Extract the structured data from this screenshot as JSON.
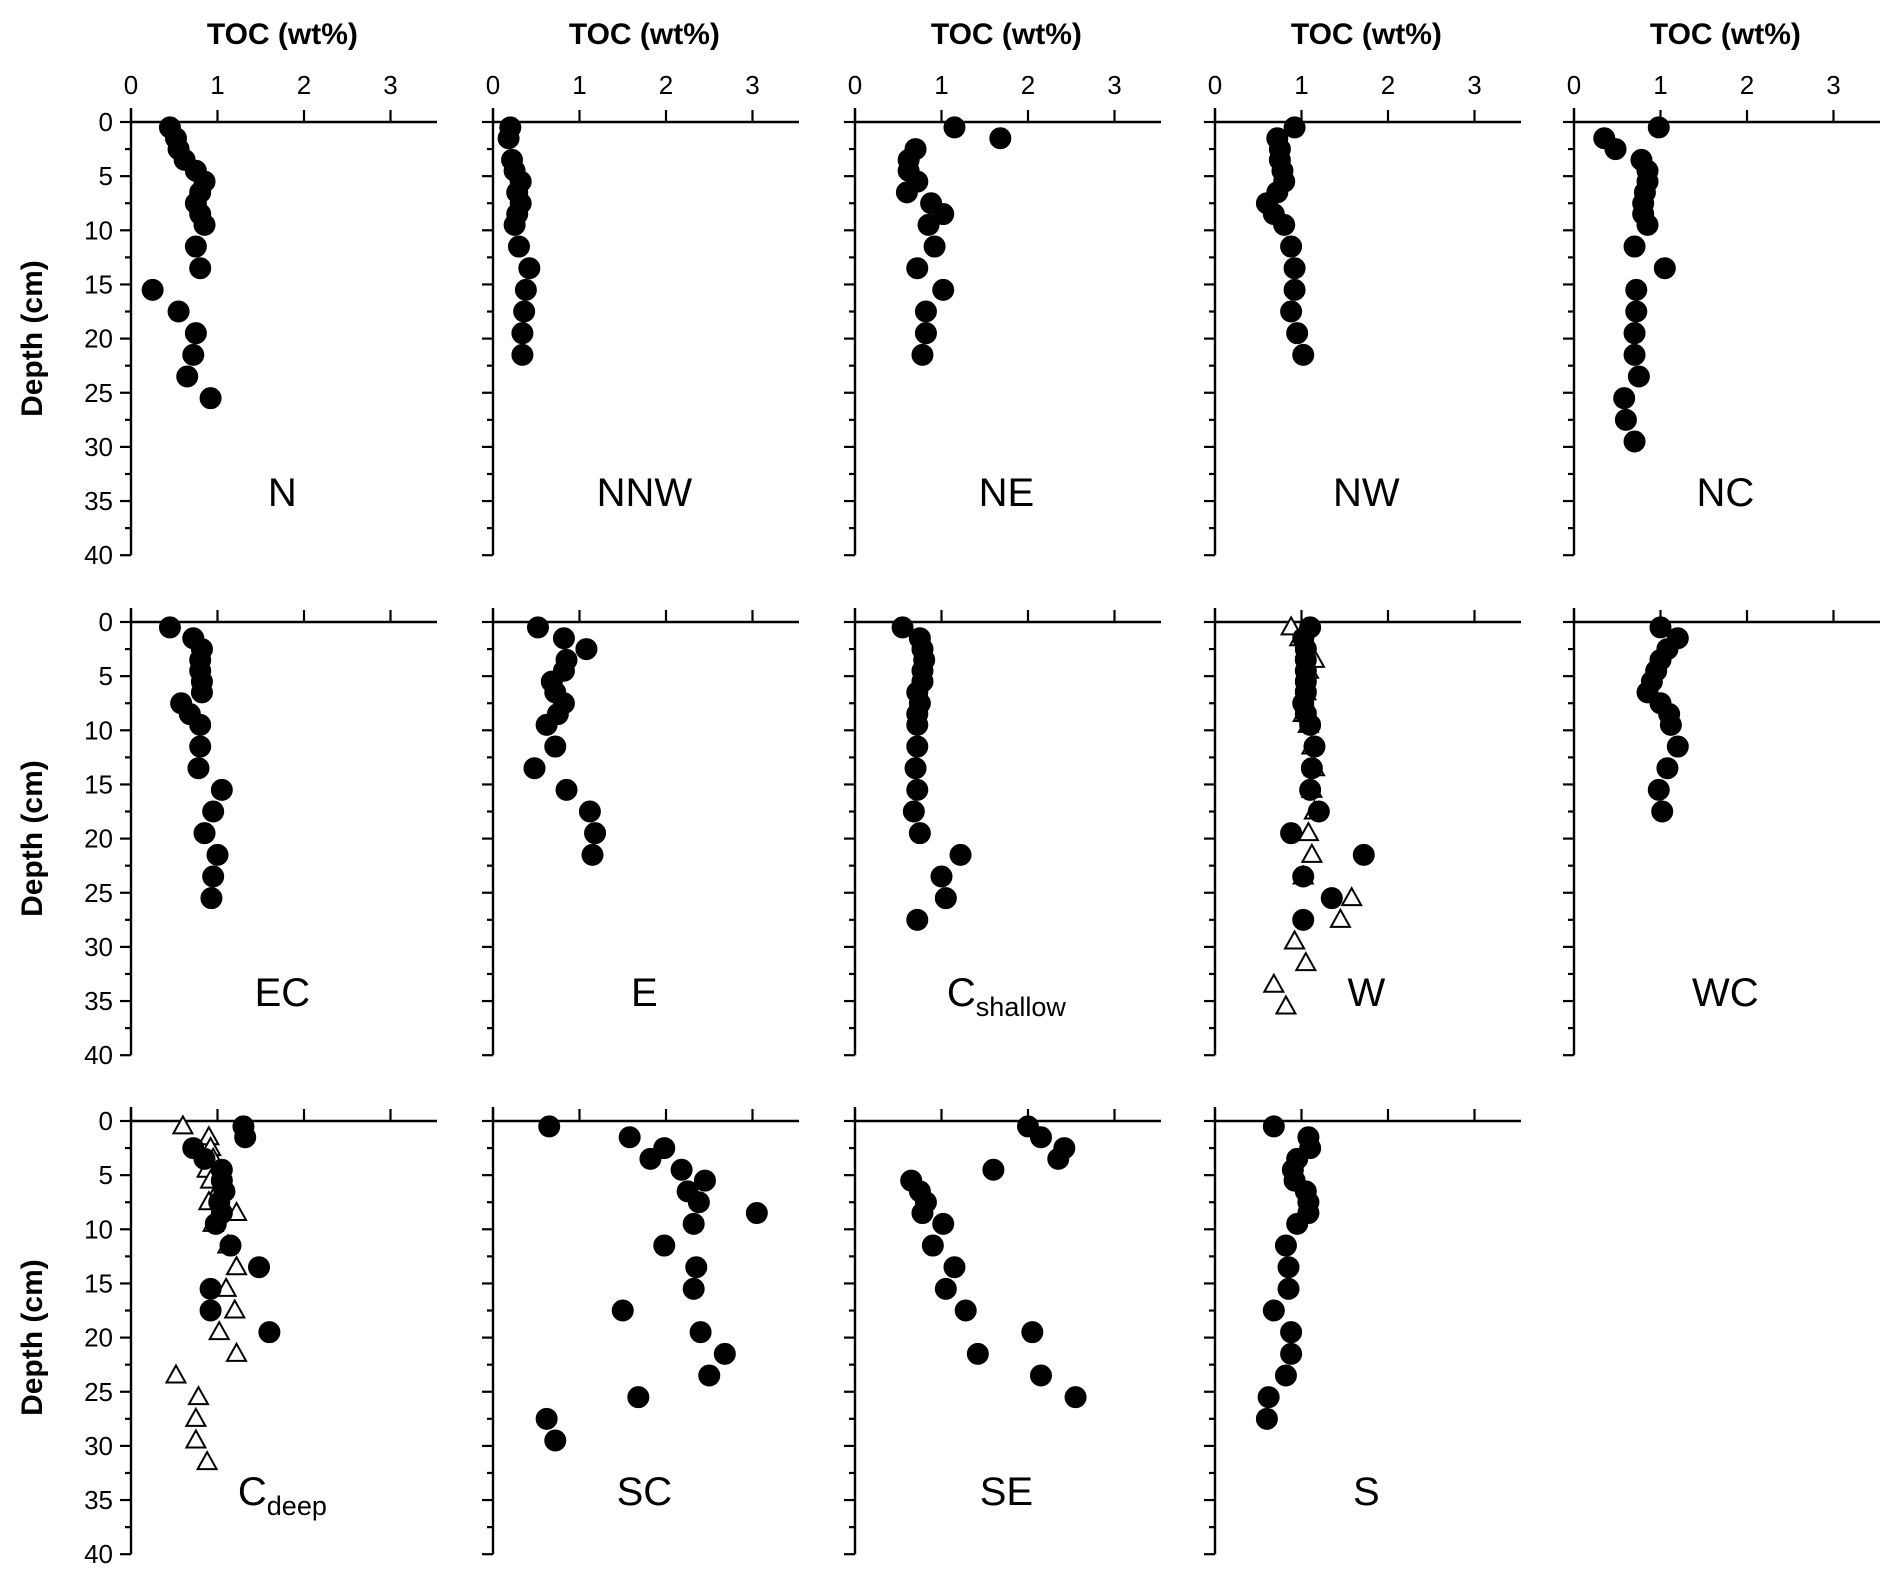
{
  "chart_data": {
    "type": "scatter",
    "layout": "3 rows x 5 columns small multiples",
    "xlabel": "TOC (wt%)",
    "ylabel": "Depth (cm)",
    "xlim": [
      0,
      3.5
    ],
    "ylim": [
      0,
      40
    ],
    "y_inverted": true,
    "xticks": [
      0,
      1,
      2,
      3
    ],
    "yticks": [
      0,
      5,
      10,
      15,
      20,
      25,
      30,
      35,
      40
    ],
    "panels": [
      {
        "name": "N",
        "circles": [
          [
            0.45,
            0.5
          ],
          [
            0.52,
            1.5
          ],
          [
            0.55,
            2.5
          ],
          [
            0.62,
            3.5
          ],
          [
            0.75,
            4.5
          ],
          [
            0.85,
            5.5
          ],
          [
            0.8,
            6.5
          ],
          [
            0.75,
            7.5
          ],
          [
            0.8,
            8.5
          ],
          [
            0.85,
            9.5
          ],
          [
            0.75,
            11.5
          ],
          [
            0.8,
            13.5
          ],
          [
            0.25,
            15.5
          ],
          [
            0.55,
            17.5
          ],
          [
            0.75,
            19.5
          ],
          [
            0.72,
            21.5
          ],
          [
            0.65,
            23.5
          ],
          [
            0.92,
            25.5
          ]
        ],
        "triangles": []
      },
      {
        "name": "NNW",
        "circles": [
          [
            0.2,
            0.5
          ],
          [
            0.18,
            1.5
          ],
          [
            0.22,
            3.5
          ],
          [
            0.25,
            4.5
          ],
          [
            0.32,
            5.5
          ],
          [
            0.28,
            6.5
          ],
          [
            0.32,
            7.5
          ],
          [
            0.28,
            8.5
          ],
          [
            0.25,
            9.5
          ],
          [
            0.3,
            11.5
          ],
          [
            0.42,
            13.5
          ],
          [
            0.38,
            15.5
          ],
          [
            0.36,
            17.5
          ],
          [
            0.34,
            19.5
          ],
          [
            0.34,
            21.5
          ]
        ],
        "triangles": []
      },
      {
        "name": "NE",
        "subscript": "",
        "circles": [
          [
            1.15,
            0.5
          ],
          [
            1.68,
            1.5
          ],
          [
            0.7,
            2.5
          ],
          [
            0.62,
            3.5
          ],
          [
            0.62,
            4.5
          ],
          [
            0.72,
            5.5
          ],
          [
            0.6,
            6.5
          ],
          [
            0.88,
            7.5
          ],
          [
            1.02,
            8.5
          ],
          [
            0.85,
            9.5
          ],
          [
            0.92,
            11.5
          ],
          [
            0.72,
            13.5
          ],
          [
            1.02,
            15.5
          ],
          [
            0.82,
            17.5
          ],
          [
            0.82,
            19.5
          ],
          [
            0.78,
            21.5
          ]
        ],
        "triangles": []
      },
      {
        "name": "NW",
        "circles": [
          [
            0.92,
            0.5
          ],
          [
            0.72,
            1.5
          ],
          [
            0.75,
            2.5
          ],
          [
            0.75,
            3.5
          ],
          [
            0.78,
            4.5
          ],
          [
            0.8,
            5.5
          ],
          [
            0.72,
            6.5
          ],
          [
            0.6,
            7.5
          ],
          [
            0.68,
            8.5
          ],
          [
            0.8,
            9.5
          ],
          [
            0.88,
            11.5
          ],
          [
            0.92,
            13.5
          ],
          [
            0.92,
            15.5
          ],
          [
            0.88,
            17.5
          ],
          [
            0.95,
            19.5
          ],
          [
            1.02,
            21.5
          ]
        ],
        "triangles": []
      },
      {
        "name": "NC",
        "circles": [
          [
            0.98,
            0.5
          ],
          [
            0.35,
            1.5
          ],
          [
            0.48,
            2.5
          ],
          [
            0.78,
            3.5
          ],
          [
            0.85,
            4.5
          ],
          [
            0.85,
            5.5
          ],
          [
            0.82,
            6.5
          ],
          [
            0.8,
            7.5
          ],
          [
            0.8,
            8.5
          ],
          [
            0.85,
            9.5
          ],
          [
            0.7,
            11.5
          ],
          [
            1.05,
            13.5
          ],
          [
            0.72,
            15.5
          ],
          [
            0.72,
            17.5
          ],
          [
            0.7,
            19.5
          ],
          [
            0.7,
            21.5
          ],
          [
            0.75,
            23.5
          ],
          [
            0.58,
            25.5
          ],
          [
            0.6,
            27.5
          ],
          [
            0.7,
            29.5
          ]
        ],
        "triangles": []
      },
      {
        "name": "EC",
        "circles": [
          [
            0.45,
            0.5
          ],
          [
            0.72,
            1.5
          ],
          [
            0.82,
            2.5
          ],
          [
            0.8,
            3.5
          ],
          [
            0.8,
            4.5
          ],
          [
            0.82,
            5.5
          ],
          [
            0.82,
            6.5
          ],
          [
            0.58,
            7.5
          ],
          [
            0.68,
            8.5
          ],
          [
            0.8,
            9.5
          ],
          [
            0.8,
            11.5
          ],
          [
            0.78,
            13.5
          ],
          [
            1.05,
            15.5
          ],
          [
            0.95,
            17.5
          ],
          [
            0.85,
            19.5
          ],
          [
            1.0,
            21.5
          ],
          [
            0.95,
            23.5
          ],
          [
            0.93,
            25.5
          ]
        ],
        "triangles": []
      },
      {
        "name": "E",
        "circles": [
          [
            0.52,
            0.5
          ],
          [
            0.82,
            1.5
          ],
          [
            1.08,
            2.5
          ],
          [
            0.85,
            3.5
          ],
          [
            0.82,
            4.5
          ],
          [
            0.68,
            5.5
          ],
          [
            0.72,
            6.5
          ],
          [
            0.82,
            7.5
          ],
          [
            0.75,
            8.5
          ],
          [
            0.62,
            9.5
          ],
          [
            0.72,
            11.5
          ],
          [
            0.48,
            13.5
          ],
          [
            0.85,
            15.5
          ],
          [
            1.12,
            17.5
          ],
          [
            1.18,
            19.5
          ],
          [
            1.15,
            21.5
          ]
        ],
        "triangles": []
      },
      {
        "name": "C",
        "subscript": "shallow",
        "circles": [
          [
            0.55,
            0.5
          ],
          [
            0.75,
            1.5
          ],
          [
            0.78,
            2.5
          ],
          [
            0.8,
            3.5
          ],
          [
            0.78,
            4.5
          ],
          [
            0.78,
            5.5
          ],
          [
            0.72,
            6.5
          ],
          [
            0.75,
            7.5
          ],
          [
            0.72,
            8.5
          ],
          [
            0.72,
            9.5
          ],
          [
            0.72,
            11.5
          ],
          [
            0.7,
            13.5
          ],
          [
            0.72,
            15.5
          ],
          [
            0.68,
            17.5
          ],
          [
            0.75,
            19.5
          ],
          [
            1.22,
            21.5
          ],
          [
            1.0,
            23.5
          ],
          [
            1.05,
            25.5
          ],
          [
            0.72,
            27.5
          ]
        ],
        "triangles": []
      },
      {
        "name": "W",
        "circles": [
          [
            1.1,
            0.5
          ],
          [
            1.02,
            1.5
          ],
          [
            1.05,
            2.5
          ],
          [
            1.05,
            3.5
          ],
          [
            1.05,
            4.5
          ],
          [
            1.05,
            5.5
          ],
          [
            1.05,
            6.5
          ],
          [
            1.02,
            7.5
          ],
          [
            1.05,
            8.5
          ],
          [
            1.1,
            9.5
          ],
          [
            1.15,
            11.5
          ],
          [
            1.12,
            13.5
          ],
          [
            1.1,
            15.5
          ],
          [
            1.2,
            17.5
          ],
          [
            0.88,
            19.5
          ],
          [
            1.72,
            21.5
          ],
          [
            1.02,
            23.5
          ],
          [
            1.35,
            25.5
          ],
          [
            1.02,
            27.5
          ]
        ],
        "triangles": [
          [
            0.88,
            0.5
          ],
          [
            0.98,
            1.5
          ],
          [
            1.05,
            2.5
          ],
          [
            1.15,
            3.5
          ],
          [
            1.08,
            4.5
          ],
          [
            1.05,
            5.5
          ],
          [
            1.05,
            6.5
          ],
          [
            1.05,
            7.5
          ],
          [
            1.02,
            8.5
          ],
          [
            1.08,
            9.5
          ],
          [
            1.12,
            11.5
          ],
          [
            1.15,
            13.5
          ],
          [
            1.12,
            15.5
          ],
          [
            1.15,
            17.5
          ],
          [
            1.08,
            19.5
          ],
          [
            1.12,
            21.5
          ],
          [
            1.02,
            23.5
          ],
          [
            1.58,
            25.5
          ],
          [
            1.45,
            27.5
          ],
          [
            0.92,
            29.5
          ],
          [
            1.05,
            31.5
          ],
          [
            0.68,
            33.5
          ],
          [
            0.82,
            35.5
          ]
        ]
      },
      {
        "name": "WC",
        "circles": [
          [
            1.0,
            0.5
          ],
          [
            1.2,
            1.5
          ],
          [
            1.08,
            2.5
          ],
          [
            1.0,
            3.5
          ],
          [
            0.95,
            4.5
          ],
          [
            0.9,
            5.5
          ],
          [
            0.85,
            6.5
          ],
          [
            1.0,
            7.5
          ],
          [
            1.1,
            8.5
          ],
          [
            1.12,
            9.5
          ],
          [
            1.2,
            11.5
          ],
          [
            1.08,
            13.5
          ],
          [
            0.98,
            15.5
          ],
          [
            1.02,
            17.5
          ]
        ],
        "triangles": []
      },
      {
        "name": "C",
        "subscript": "deep",
        "circles": [
          [
            1.3,
            0.5
          ],
          [
            1.32,
            1.5
          ],
          [
            0.72,
            2.5
          ],
          [
            0.85,
            3.5
          ],
          [
            1.05,
            4.5
          ],
          [
            1.05,
            5.5
          ],
          [
            1.08,
            6.5
          ],
          [
            1.02,
            7.5
          ],
          [
            1.05,
            8.5
          ],
          [
            0.98,
            9.5
          ],
          [
            1.15,
            11.5
          ],
          [
            1.48,
            13.5
          ],
          [
            0.92,
            15.5
          ],
          [
            0.92,
            17.5
          ],
          [
            1.6,
            19.5
          ]
        ],
        "triangles": [
          [
            0.6,
            0.5
          ],
          [
            0.9,
            1.5
          ],
          [
            0.92,
            2.5
          ],
          [
            0.95,
            3.5
          ],
          [
            0.88,
            4.5
          ],
          [
            0.92,
            5.5
          ],
          [
            1.0,
            6.5
          ],
          [
            0.9,
            7.5
          ],
          [
            1.22,
            8.5
          ],
          [
            0.95,
            9.5
          ],
          [
            1.12,
            11.5
          ],
          [
            1.22,
            13.5
          ],
          [
            1.1,
            15.5
          ],
          [
            1.2,
            17.5
          ],
          [
            1.02,
            19.5
          ],
          [
            1.22,
            21.5
          ],
          [
            0.52,
            23.5
          ],
          [
            0.78,
            25.5
          ],
          [
            0.75,
            27.5
          ],
          [
            0.75,
            29.5
          ],
          [
            0.88,
            31.5
          ]
        ]
      },
      {
        "name": "SC",
        "circles": [
          [
            0.65,
            0.5
          ],
          [
            1.58,
            1.5
          ],
          [
            1.98,
            2.5
          ],
          [
            1.82,
            3.5
          ],
          [
            2.18,
            4.5
          ],
          [
            2.45,
            5.5
          ],
          [
            2.25,
            6.5
          ],
          [
            2.38,
            7.5
          ],
          [
            3.05,
            8.5
          ],
          [
            2.32,
            9.5
          ],
          [
            1.98,
            11.5
          ],
          [
            2.35,
            13.5
          ],
          [
            2.32,
            15.5
          ],
          [
            1.5,
            17.5
          ],
          [
            2.4,
            19.5
          ],
          [
            2.68,
            21.5
          ],
          [
            2.5,
            23.5
          ],
          [
            1.68,
            25.5
          ],
          [
            0.62,
            27.5
          ],
          [
            0.72,
            29.5
          ]
        ],
        "triangles": []
      },
      {
        "name": "SE",
        "circles": [
          [
            2.0,
            0.5
          ],
          [
            2.15,
            1.5
          ],
          [
            2.42,
            2.5
          ],
          [
            2.35,
            3.5
          ],
          [
            1.6,
            4.5
          ],
          [
            0.65,
            5.5
          ],
          [
            0.75,
            6.5
          ],
          [
            0.82,
            7.5
          ],
          [
            0.78,
            8.5
          ],
          [
            1.02,
            9.5
          ],
          [
            0.9,
            11.5
          ],
          [
            1.15,
            13.5
          ],
          [
            1.05,
            15.5
          ],
          [
            1.28,
            17.5
          ],
          [
            2.05,
            19.5
          ],
          [
            1.42,
            21.5
          ],
          [
            2.15,
            23.5
          ],
          [
            2.55,
            25.5
          ]
        ],
        "triangles": []
      },
      {
        "name": "S",
        "circles": [
          [
            0.68,
            0.5
          ],
          [
            1.08,
            1.5
          ],
          [
            1.1,
            2.5
          ],
          [
            0.95,
            3.5
          ],
          [
            0.9,
            4.5
          ],
          [
            0.92,
            5.5
          ],
          [
            1.05,
            6.5
          ],
          [
            1.08,
            7.5
          ],
          [
            1.08,
            8.5
          ],
          [
            0.95,
            9.5
          ],
          [
            0.82,
            11.5
          ],
          [
            0.85,
            13.5
          ],
          [
            0.85,
            15.5
          ],
          [
            0.68,
            17.5
          ],
          [
            0.88,
            19.5
          ],
          [
            0.88,
            21.5
          ],
          [
            0.82,
            23.5
          ],
          [
            0.62,
            25.5
          ],
          [
            0.6,
            27.5
          ]
        ],
        "triangles": []
      }
    ]
  }
}
